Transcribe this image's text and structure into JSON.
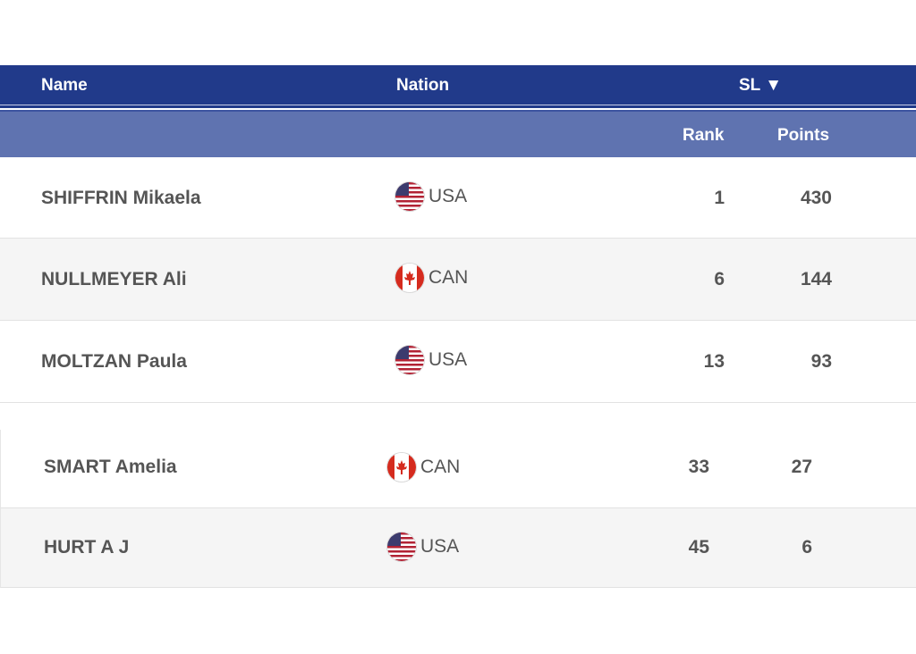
{
  "header": {
    "name_label": "Name",
    "nation_label": "Nation",
    "discipline_label": "SL",
    "sort_indicator": "▼",
    "rank_label": "Rank",
    "points_label": "Points",
    "header_color": "#213a8a",
    "subheader_color": "#5f73b0"
  },
  "rows": [
    {
      "name": "SHIFFRIN Mikaela",
      "flag": "usa-flag-icon",
      "nation": "USA",
      "rank": "1",
      "points": "430"
    },
    {
      "name": "NULLMEYER Ali",
      "flag": "canada-flag-icon",
      "nation": "CAN",
      "rank": "6",
      "points": "144"
    },
    {
      "name": "MOLTZAN Paula",
      "flag": "usa-flag-icon",
      "nation": "USA",
      "rank": "13",
      "points": "93"
    },
    {
      "name": "SMART Amelia",
      "flag": "canada-flag-icon",
      "nation": "CAN",
      "rank": "33",
      "points": "27"
    },
    {
      "name": "HURT A J",
      "flag": "usa-flag-icon",
      "nation": "USA",
      "rank": "45",
      "points": "6"
    }
  ]
}
